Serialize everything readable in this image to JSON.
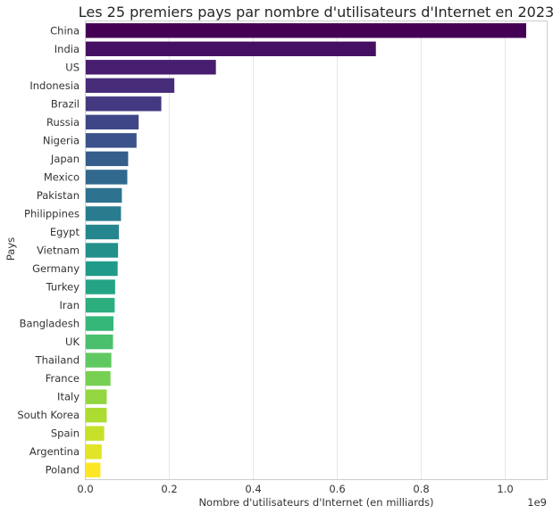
{
  "chart_data": {
    "type": "bar",
    "orientation": "horizontal",
    "title": "Les 25 premiers pays par nombre d'utilisateurs d'Internet en 2023",
    "xlabel": "Nombre d'utilisateurs d'Internet (en milliards)",
    "ylabel": "Pays",
    "x_offset_label": "1e9",
    "xlim": [
      0,
      1.1
    ],
    "xticks": [
      "0.0",
      "0.2",
      "0.4",
      "0.6",
      "0.8",
      "1.0"
    ],
    "grid": true,
    "colormap": "viridis",
    "categories": [
      "China",
      "India",
      "US",
      "Indonesia",
      "Brazil",
      "Russia",
      "Nigeria",
      "Japan",
      "Mexico",
      "Pakistan",
      "Philippines",
      "Egypt",
      "Vietnam",
      "Germany",
      "Turkey",
      "Iran",
      "Bangladesh",
      "UK",
      "Thailand",
      "France",
      "Italy",
      "South Korea",
      "Spain",
      "Argentina",
      "Poland"
    ],
    "values": [
      1.05,
      0.692,
      0.311,
      0.212,
      0.181,
      0.127,
      0.122,
      0.102,
      0.1,
      0.087,
      0.085,
      0.08,
      0.078,
      0.077,
      0.071,
      0.07,
      0.067,
      0.066,
      0.062,
      0.06,
      0.051,
      0.051,
      0.045,
      0.039,
      0.036
    ]
  }
}
